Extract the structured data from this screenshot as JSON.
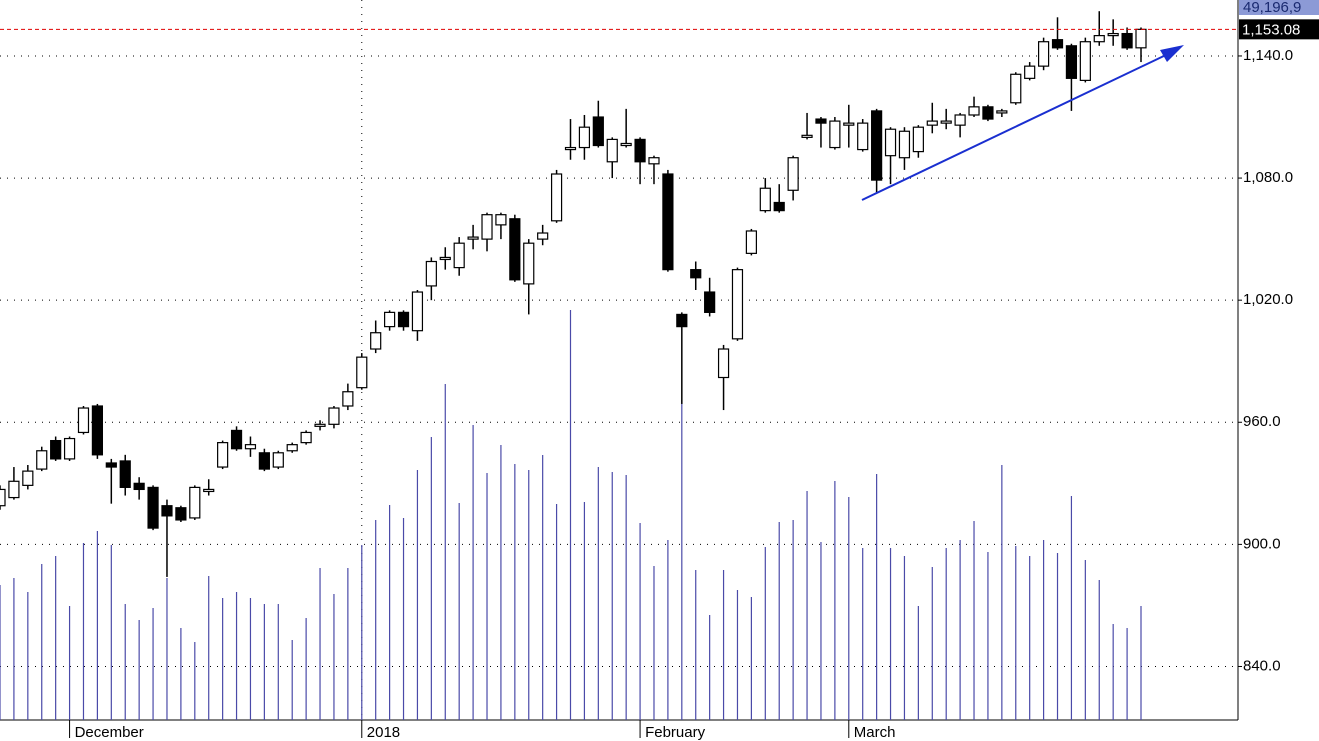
{
  "chart_data": {
    "type": "candlestick",
    "categories": [
      null,
      null,
      null,
      null,
      null,
      "December",
      null,
      null,
      null,
      null,
      null,
      null,
      null,
      null,
      null,
      null,
      null,
      null,
      null,
      null,
      null,
      null,
      null,
      null,
      null,
      null,
      "2018",
      null,
      null,
      null,
      null,
      null,
      null,
      null,
      null,
      null,
      null,
      null,
      null,
      null,
      null,
      null,
      null,
      null,
      null,
      null,
      "February",
      null,
      null,
      null,
      null,
      null,
      null,
      null,
      null,
      null,
      null,
      null,
      null,
      null,
      null,
      "March",
      null,
      null,
      null,
      null,
      null,
      null,
      null,
      null,
      null,
      null,
      null,
      null,
      null,
      null,
      null,
      null,
      null,
      null,
      null,
      null,
      null
    ],
    "open": [
      919,
      923,
      929,
      937,
      951,
      942,
      955,
      968,
      940,
      941,
      930,
      928,
      919,
      918,
      913,
      926,
      938,
      956,
      947,
      945,
      938,
      946,
      950,
      958,
      959,
      968,
      977,
      996,
      1007,
      1014,
      1005,
      1027,
      1040,
      1036,
      1050,
      1050,
      1057,
      1060,
      1028,
      1050,
      1059,
      1094,
      1095,
      1110,
      1088,
      1096,
      1099,
      1087,
      1082,
      1013,
      1035,
      1024,
      982,
      1001,
      1043,
      1064,
      1068,
      1074,
      1100,
      1109,
      1095,
      1106,
      1094,
      1113,
      1091,
      1090,
      1093,
      1106,
      1107,
      1106,
      1111,
      1115,
      1112,
      1117,
      1129,
      1135,
      1148,
      1145,
      1128,
      1147,
      1150,
      1151,
      1144
    ],
    "high": [
      929,
      938,
      939,
      948,
      953,
      953,
      968,
      969,
      942,
      944,
      933,
      929,
      922,
      919,
      929,
      932,
      951,
      958,
      953,
      947,
      946,
      950,
      956,
      961,
      968,
      979,
      994,
      1010,
      1015,
      1015,
      1025,
      1041,
      1046,
      1051,
      1057,
      1063,
      1063,
      1062,
      1050,
      1057,
      1084,
      1109,
      1111,
      1118,
      1100,
      1114,
      1100,
      1091,
      1084,
      1014,
      1039,
      1031,
      998,
      1036,
      1055,
      1080,
      1077,
      1091,
      1112,
      1110,
      1110,
      1116,
      1109,
      1114,
      1105,
      1105,
      1106,
      1117,
      1114,
      1112,
      1120,
      1116,
      1114,
      1132,
      1137,
      1149,
      1159,
      1146,
      1149,
      1162,
      1158,
      1154,
      1154
    ],
    "low": [
      917,
      922,
      927,
      936,
      941,
      941,
      954,
      942,
      920,
      924,
      922,
      907,
      884,
      911,
      912,
      924,
      937,
      946,
      943,
      936,
      937,
      945,
      949,
      956,
      957,
      966,
      976,
      994,
      1005,
      1005,
      1000,
      1020,
      1035,
      1032,
      1045,
      1044,
      1050,
      1029,
      1013,
      1047,
      1058,
      1089,
      1089,
      1095,
      1080,
      1095,
      1077,
      1077,
      1034,
      969,
      1025,
      1012,
      966,
      1000,
      1042,
      1063,
      1063,
      1069,
      1099,
      1095,
      1094,
      1095,
      1093,
      1073,
      1077,
      1084,
      1090,
      1102,
      1104,
      1100,
      1110,
      1108,
      1110,
      1116,
      1128,
      1133,
      1143,
      1113,
      1127,
      1145,
      1145,
      1143,
      1137
    ],
    "close": [
      927,
      931,
      936,
      946,
      942,
      952,
      967,
      944,
      938,
      928,
      927,
      908,
      914,
      912,
      928,
      927,
      950,
      947,
      949,
      937,
      945,
      949,
      955,
      959,
      967,
      975,
      992,
      1004,
      1014,
      1007,
      1024,
      1039,
      1041,
      1048,
      1051,
      1062,
      1062,
      1030,
      1048,
      1053,
      1082,
      1095,
      1105,
      1096,
      1099,
      1097,
      1088,
      1090,
      1035,
      1007,
      1031,
      1014,
      996,
      1035,
      1054,
      1075,
      1064,
      1090,
      1101,
      1107,
      1108,
      1107,
      1107,
      1079,
      1104,
      1103,
      1105,
      1108,
      1108,
      1111,
      1115,
      1109,
      1113,
      1131,
      1135,
      1147,
      1144,
      1129,
      1147,
      1150,
      1151,
      1144,
      1153.08
    ],
    "volume": {
      "axis": "y2",
      "color": "#4a4aa8",
      "values": [
        9315000,
        9798000,
        8832000,
        10764000,
        11316000,
        7866000,
        12213000,
        13041000,
        12075000,
        8004000,
        6900000,
        7728000,
        9798000,
        6348000,
        5382000,
        9936000,
        8418000,
        8832000,
        8418000,
        8004000,
        8004000,
        5520000,
        7038000,
        10488000,
        8694000,
        10488000,
        12075000,
        13800000,
        14835000,
        13938000,
        17250000,
        19527000,
        23184000,
        14973000,
        20355000,
        17043000,
        18975000,
        17664000,
        17250000,
        18285000,
        14904000,
        28290000,
        15042000,
        17457000,
        17112000,
        16905000,
        13593000,
        10626000,
        12420000,
        22080000,
        10350000,
        7245000,
        10350000,
        8970000,
        8487000,
        11937000,
        13662000,
        13800000,
        15801000,
        12282000,
        16491000,
        15387000,
        11868000,
        16974000,
        11868000,
        11316000,
        7866000,
        10557000,
        11868000,
        12420000,
        13731000,
        11592000,
        17595000,
        12006000,
        11316000,
        12420000,
        11523000,
        15456000,
        11040000,
        9660000,
        6624000,
        6348000,
        7866000
      ]
    },
    "ylim": [
      813.7,
      1167.5
    ],
    "yticks": [
      {
        "value": 840,
        "label": "840.0"
      },
      {
        "value": 900,
        "label": "900.0"
      },
      {
        "value": 960,
        "label": "960.0"
      },
      {
        "value": 1020,
        "label": "1,020.0"
      },
      {
        "value": 1080,
        "label": "1,080.0"
      },
      {
        "value": 1140,
        "label": "1,140.0"
      }
    ],
    "y2lim": [
      0,
      49680000
    ],
    "y2ticks": [
      {
        "value": 49196900,
        "label": "49,196,9"
      }
    ],
    "last_price": {
      "value": 1153.08,
      "label": "1,153.08",
      "color": "#e00000"
    },
    "up_color": "#ffffff",
    "down_color": "#000000",
    "grid": true
  }
}
